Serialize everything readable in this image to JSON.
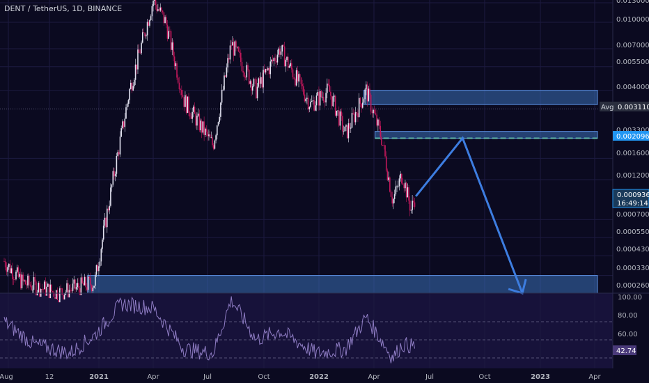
{
  "header": {
    "title": "DENT / TetherUS, 1D, BINANCE"
  },
  "colors": {
    "background": "#0b0a20",
    "rsi_background": "#17123a",
    "up_candle": "#e2e2f0",
    "down_candle": "#c2185b",
    "zone_fill": "#3b6fb6",
    "arrow": "#3d7de0",
    "rsi_line": "#8e7cc3",
    "axis_text": "#b2b5be",
    "price_tag": "#2196f3"
  },
  "price_axis": {
    "ticks": [
      "0.013000",
      "0.010000",
      "0.007000",
      "0.005500",
      "0.004000",
      "0.003300",
      "0.002096",
      "0.001600",
      "0.001200",
      "0.000700",
      "0.000550",
      "0.000430",
      "0.000330",
      "0.000260"
    ],
    "avg_label": "Avg",
    "avg_value": "0.003110",
    "current_price": "0.000936",
    "countdown": "16:49:14"
  },
  "rsi_axis": {
    "ticks": [
      "100.00",
      "80.00",
      "60.00"
    ],
    "current": "42.74"
  },
  "time_axis": {
    "labels": [
      "Aug",
      "12",
      "2021",
      "Apr",
      "Jul",
      "Oct",
      "2022",
      "Apr",
      "Jul",
      "Oct",
      "2023",
      "Apr"
    ]
  },
  "chart_data": {
    "type": "candlestick",
    "title": "DENT / TetherUS, 1D, BINANCE",
    "y_scale": "log",
    "y_range": [
      0.00026,
      0.0135
    ],
    "x_range": [
      "2020-08",
      "2023-05"
    ],
    "series_close_approx": [
      {
        "date": "2020-08-01",
        "price": 0.0004
      },
      {
        "date": "2020-09-01",
        "price": 0.0003
      },
      {
        "date": "2020-11-01",
        "price": 0.00026
      },
      {
        "date": "2021-01-01",
        "price": 0.0003
      },
      {
        "date": "2021-02-01",
        "price": 0.0012
      },
      {
        "date": "2021-03-01",
        "price": 0.004
      },
      {
        "date": "2021-04-10",
        "price": 0.0135
      },
      {
        "date": "2021-05-01",
        "price": 0.01
      },
      {
        "date": "2021-06-01",
        "price": 0.0035
      },
      {
        "date": "2021-07-20",
        "price": 0.0019
      },
      {
        "date": "2021-08-20",
        "price": 0.0075
      },
      {
        "date": "2021-10-01",
        "price": 0.004
      },
      {
        "date": "2021-11-10",
        "price": 0.007
      },
      {
        "date": "2022-01-01",
        "price": 0.0033
      },
      {
        "date": "2022-02-01",
        "price": 0.004
      },
      {
        "date": "2022-03-01",
        "price": 0.0022
      },
      {
        "date": "2022-04-05",
        "price": 0.004
      },
      {
        "date": "2022-05-01",
        "price": 0.0021
      },
      {
        "date": "2022-05-20",
        "price": 0.0009
      },
      {
        "date": "2022-06-05",
        "price": 0.0013
      },
      {
        "date": "2022-06-20",
        "price": 0.0008
      },
      {
        "date": "2022-06-26",
        "price": 0.000936
      }
    ],
    "zones": [
      {
        "from": "2022-04-01",
        "to": "2023-05-01",
        "low": 0.0033,
        "high": 0.004
      },
      {
        "from": "2022-04-20",
        "to": "2023-05-01",
        "low": 0.002096,
        "high": 0.0023
      },
      {
        "from": "2020-12-20",
        "to": "2023-05-01",
        "low": 0.00026,
        "high": 0.00033
      }
    ],
    "projection": [
      {
        "date": "2022-06-28",
        "price": 0.00096
      },
      {
        "date": "2022-09-15",
        "price": 0.0021
      },
      {
        "date": "2022-12-25",
        "price": 0.00026
      }
    ],
    "rsi": {
      "period_range": [
        20,
        100
      ],
      "levels": [
        70,
        50,
        30
      ],
      "current": 42.74,
      "points": [
        {
          "date": "2020-08-01",
          "value": 70
        },
        {
          "date": "2020-09-20",
          "value": 45
        },
        {
          "date": "2020-11-20",
          "value": 35
        },
        {
          "date": "2021-01-01",
          "value": 55
        },
        {
          "date": "2021-02-15",
          "value": 90
        },
        {
          "date": "2021-04-10",
          "value": 85
        },
        {
          "date": "2021-06-01",
          "value": 40
        },
        {
          "date": "2021-07-20",
          "value": 35
        },
        {
          "date": "2021-08-20",
          "value": 95
        },
        {
          "date": "2021-10-01",
          "value": 50
        },
        {
          "date": "2021-11-10",
          "value": 60
        },
        {
          "date": "2022-01-10",
          "value": 35
        },
        {
          "date": "2022-03-01",
          "value": 40
        },
        {
          "date": "2022-04-05",
          "value": 75
        },
        {
          "date": "2022-05-20",
          "value": 30
        },
        {
          "date": "2022-06-05",
          "value": 45
        },
        {
          "date": "2022-06-26",
          "value": 42.74
        }
      ]
    }
  }
}
